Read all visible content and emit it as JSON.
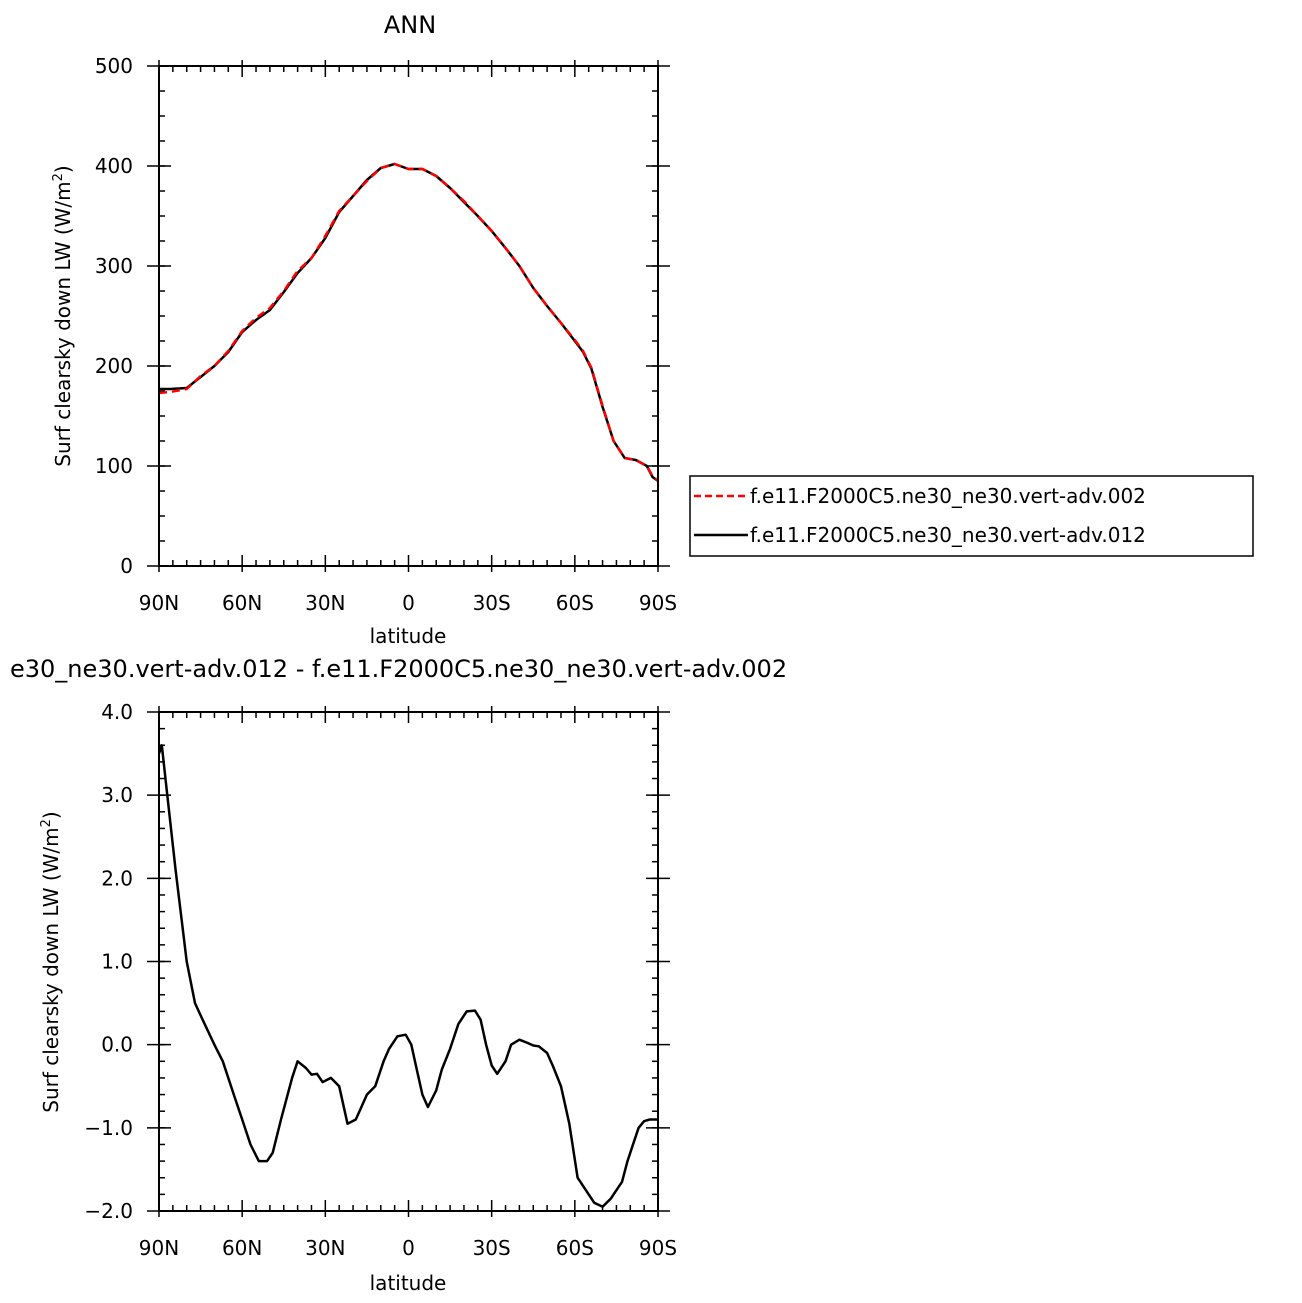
{
  "chart_data": [
    {
      "type": "line",
      "title": "ANN",
      "xlabel": "latitude",
      "ylabel": "Surf clearsky down LW (W/m",
      "ylabel_sup": "2",
      "ylabel_tail": ")",
      "xlim": [
        90,
        -90
      ],
      "ylim": [
        0,
        500
      ],
      "xticks": [
        {
          "v": 90,
          "label": "90N"
        },
        {
          "v": 60,
          "label": "60N"
        },
        {
          "v": 30,
          "label": "30N"
        },
        {
          "v": 0,
          "label": "0"
        },
        {
          "v": -30,
          "label": "30S"
        },
        {
          "v": -60,
          "label": "60S"
        },
        {
          "v": -90,
          "label": "90S"
        }
      ],
      "yticks": [
        {
          "v": 0,
          "label": "0"
        },
        {
          "v": 100,
          "label": "100"
        },
        {
          "v": 200,
          "label": "200"
        },
        {
          "v": 300,
          "label": "300"
        },
        {
          "v": 400,
          "label": "400"
        },
        {
          "v": 500,
          "label": "500"
        }
      ],
      "grid": false,
      "legend": "right",
      "series": [
        {
          "name": "f.e11.F2000C5.ne30_ne30.vert-adv.002",
          "color": "#ff0000",
          "style": "dashed",
          "x": [
            90,
            86,
            80,
            75,
            70,
            65,
            60,
            55,
            50,
            45,
            40,
            35,
            30,
            25,
            20,
            15,
            10,
            5,
            0,
            -5,
            -10,
            -15,
            -20,
            -25,
            -30,
            -35,
            -40,
            -45,
            -50,
            -55,
            -60,
            -63,
            -66,
            -70,
            -74,
            -78,
            -82,
            -86,
            -88,
            -90
          ],
          "y": [
            173,
            174,
            177,
            190,
            200,
            215,
            235,
            248,
            258,
            275,
            295,
            308,
            330,
            355,
            370,
            385,
            398,
            402,
            397,
            397,
            390,
            378,
            365,
            350,
            335,
            318,
            300,
            278,
            260,
            243,
            226,
            215,
            198,
            160,
            125,
            108,
            106,
            100,
            90,
            85
          ]
        },
        {
          "name": "f.e11.F2000C5.ne30_ne30.vert-adv.012",
          "color": "#000000",
          "style": "solid",
          "x": [
            90,
            86,
            80,
            75,
            70,
            65,
            60,
            55,
            50,
            45,
            40,
            35,
            30,
            25,
            20,
            15,
            10,
            5,
            0,
            -5,
            -10,
            -15,
            -20,
            -25,
            -30,
            -35,
            -40,
            -45,
            -50,
            -55,
            -60,
            -63,
            -66,
            -70,
            -74,
            -78,
            -82,
            -86,
            -88,
            -90
          ],
          "y": [
            177,
            177,
            178,
            189,
            200,
            214,
            234,
            246,
            256,
            274,
            293,
            308,
            328,
            354,
            370,
            386,
            398,
            402,
            397,
            397,
            390,
            378,
            364,
            350,
            335,
            318,
            300,
            278,
            260,
            243,
            225,
            214,
            197,
            159,
            125,
            108,
            106,
            100,
            89,
            85
          ]
        }
      ]
    },
    {
      "type": "line",
      "title": "e30_ne30.vert-adv.012 - f.e11.F2000C5.ne30_ne30.vert-adv.002",
      "xlabel": "latitude",
      "ylabel": "Surf clearsky down LW (W/m",
      "ylabel_sup": "2",
      "ylabel_tail": ")",
      "xlim": [
        90,
        -90
      ],
      "ylim": [
        -2.0,
        4.0
      ],
      "xticks": [
        {
          "v": 90,
          "label": "90N"
        },
        {
          "v": 60,
          "label": "60N"
        },
        {
          "v": 30,
          "label": "30N"
        },
        {
          "v": 0,
          "label": "0"
        },
        {
          "v": -30,
          "label": "30S"
        },
        {
          "v": -60,
          "label": "60S"
        },
        {
          "v": -90,
          "label": "90S"
        }
      ],
      "yticks": [
        {
          "v": -2.0,
          "label": "−2.0"
        },
        {
          "v": -1.0,
          "label": "−1.0"
        },
        {
          "v": 0.0,
          "label": "0.0"
        },
        {
          "v": 1.0,
          "label": "1.0"
        },
        {
          "v": 2.0,
          "label": "2.0"
        },
        {
          "v": 3.0,
          "label": "3.0"
        },
        {
          "v": 4.0,
          "label": "4.0"
        }
      ],
      "grid": false,
      "series": [
        {
          "color": "#000000",
          "style": "solid",
          "x": [
            90,
            89,
            87,
            84,
            80,
            77,
            74,
            70,
            67,
            63,
            60,
            57,
            54,
            51,
            49,
            46,
            42,
            40,
            37,
            35,
            33,
            31,
            28,
            25,
            22,
            19,
            17,
            15,
            12,
            9,
            7,
            4,
            1,
            -1,
            -3,
            -5,
            -7,
            -10,
            -12,
            -15,
            -18,
            -21,
            -24,
            -26,
            -28,
            -30,
            -32,
            -35,
            -37,
            -40,
            -43,
            -45,
            -47,
            -50,
            -52,
            -55,
            -58,
            -61,
            -64,
            -67,
            -70,
            -73,
            -75,
            -77,
            -79,
            -81,
            -83,
            -85,
            -87,
            -89,
            -90
          ],
          "y": [
            3.5,
            3.6,
            3.0,
            2.1,
            1.0,
            0.5,
            0.28,
            0.0,
            -0.2,
            -0.6,
            -0.9,
            -1.2,
            -1.4,
            -1.4,
            -1.3,
            -0.9,
            -0.4,
            -0.2,
            -0.28,
            -0.36,
            -0.35,
            -0.45,
            -0.4,
            -0.5,
            -0.95,
            -0.9,
            -0.75,
            -0.6,
            -0.5,
            -0.2,
            -0.05,
            0.1,
            0.12,
            0.0,
            -0.3,
            -0.6,
            -0.75,
            -0.55,
            -0.3,
            -0.05,
            0.25,
            0.4,
            0.41,
            0.3,
            0.0,
            -0.25,
            -0.35,
            -0.2,
            0.0,
            0.06,
            0.02,
            -0.01,
            -0.02,
            -0.1,
            -0.25,
            -0.5,
            -0.95,
            -1.6,
            -1.75,
            -1.9,
            -1.95,
            -1.85,
            -1.75,
            -1.65,
            -1.4,
            -1.2,
            -1.0,
            -0.92,
            -0.9,
            -0.9,
            -0.9
          ]
        }
      ]
    }
  ]
}
